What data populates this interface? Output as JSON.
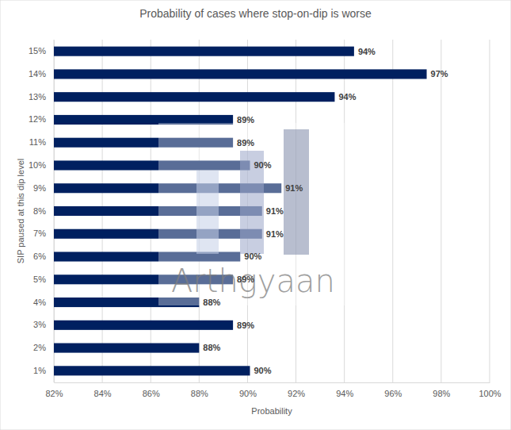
{
  "chart_data": {
    "type": "bar",
    "orientation": "horizontal",
    "title": "Probability of cases where stop-on-dip is worse",
    "xlabel": "Probability",
    "ylabel": "SIP paused at this dip level",
    "categories": [
      "1%",
      "2%",
      "3%",
      "4%",
      "5%",
      "6%",
      "7%",
      "8%",
      "9%",
      "10%",
      "11%",
      "12%",
      "13%",
      "14%",
      "15%"
    ],
    "values": [
      90.1,
      88.0,
      89.4,
      88.0,
      89.4,
      89.7,
      90.6,
      90.6,
      91.4,
      90.1,
      89.4,
      89.4,
      93.6,
      97.4,
      94.4
    ],
    "value_labels": [
      "90%",
      "88%",
      "89%",
      "88%",
      "89%",
      "90%",
      "91%",
      "91%",
      "91%",
      "90%",
      "89%",
      "89%",
      "94%",
      "97%",
      "94%"
    ],
    "data_labels": true,
    "color": "#002060",
    "xlim": [
      82,
      100
    ],
    "xticks": [
      {
        "value": 82,
        "label": "82%"
      },
      {
        "value": 84,
        "label": "84%"
      },
      {
        "value": 86,
        "label": "86%"
      },
      {
        "value": 88,
        "label": "88%"
      },
      {
        "value": 90,
        "label": "90%"
      },
      {
        "value": 92,
        "label": "92%"
      },
      {
        "value": 94,
        "label": "94%"
      },
      {
        "value": 96,
        "label": "96%"
      },
      {
        "value": 98,
        "label": "98%"
      },
      {
        "value": 100,
        "label": "100%"
      }
    ],
    "grid": true,
    "annotations": [
      "Arthgyaan"
    ]
  }
}
